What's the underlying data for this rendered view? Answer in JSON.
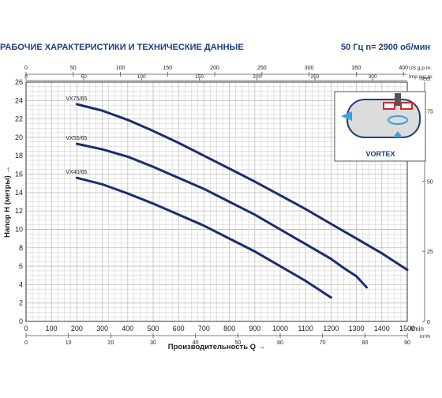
{
  "header": {
    "title": "РАБОЧИЕ ХАРАКТЕРИСТИКИ И ТЕХНИЧЕСКИЕ ДАННЫЕ",
    "specs": "50 Гц   n= 2900 об/мин"
  },
  "inset": {
    "label": "VORTEX",
    "colors": {
      "body": "#dcdcdc",
      "border": "#1d3f7e",
      "impeller": "#d9232a",
      "flow": "#3aa0e0"
    }
  },
  "colors": {
    "curve": "#1b2d6b",
    "grid": "#bdbdbd",
    "header": "#1d3f7e"
  },
  "chart_data": {
    "type": "line",
    "xlabel": "Производительность Q",
    "ylabel": "Напор H (метры)",
    "x_unit": "l/min",
    "y_unit_right": "feet",
    "xlim": [
      0,
      1500
    ],
    "ylim": [
      0,
      26
    ],
    "x_ticks": [
      0,
      100,
      200,
      300,
      400,
      500,
      600,
      700,
      800,
      900,
      1000,
      1100,
      1200,
      1300,
      1400,
      1500
    ],
    "y_ticks": [
      0,
      2,
      4,
      6,
      8,
      10,
      12,
      14,
      16,
      18,
      20,
      22,
      24,
      26
    ],
    "top_axis_us": {
      "unit": "US g.p.m.",
      "max": 400,
      "ticks": [
        0,
        50,
        100,
        150,
        200,
        250,
        300,
        350,
        400
      ]
    },
    "top_axis_imp": {
      "unit": "Imp g.p.m.",
      "max": 330,
      "ticks": [
        0,
        50,
        100,
        150,
        200,
        250,
        300
      ]
    },
    "bottom_axis_m3h": {
      "unit": "m³/h",
      "max": 90,
      "ticks": [
        0,
        10,
        20,
        30,
        40,
        50,
        60,
        70,
        80,
        90
      ]
    },
    "right_axis_feet": {
      "unit": "feet",
      "ticks": [
        0,
        25,
        50,
        75
      ]
    },
    "grid": true,
    "series": [
      {
        "name": "VX75/65",
        "x": [
          200,
          300,
          400,
          500,
          600,
          700,
          800,
          900,
          1000,
          1100,
          1200,
          1300,
          1400,
          1500
        ],
        "values": [
          23.6,
          22.9,
          21.9,
          20.7,
          19.4,
          18.0,
          16.6,
          15.2,
          13.7,
          12.2,
          10.6,
          9.0,
          7.4,
          5.6
        ]
      },
      {
        "name": "VX55/65",
        "x": [
          200,
          300,
          400,
          500,
          600,
          700,
          800,
          900,
          1000,
          1100,
          1200,
          1250,
          1300,
          1340
        ],
        "values": [
          19.3,
          18.7,
          17.9,
          16.8,
          15.6,
          14.4,
          13.0,
          11.6,
          10.0,
          8.4,
          6.8,
          5.8,
          4.9,
          3.7
        ]
      },
      {
        "name": "VX40/65",
        "x": [
          200,
          300,
          400,
          500,
          600,
          700,
          800,
          900,
          1000,
          1100,
          1200
        ],
        "values": [
          15.6,
          14.9,
          13.9,
          12.8,
          11.6,
          10.4,
          9.0,
          7.6,
          6.0,
          4.4,
          2.6
        ]
      }
    ]
  }
}
